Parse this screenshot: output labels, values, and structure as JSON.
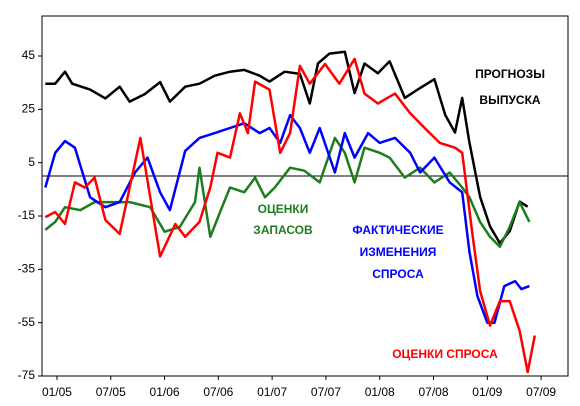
{
  "chart_data": {
    "type": "line",
    "xlim": [
      -1.67,
      57.0
    ],
    "ylim": [
      -75,
      60
    ],
    "yticks": [
      45,
      25,
      5,
      -15,
      -35,
      -55,
      -75
    ],
    "xticks": [
      {
        "value": 0,
        "label": "01/05"
      },
      {
        "value": 6,
        "label": "07/05"
      },
      {
        "value": 12,
        "label": "01/06"
      },
      {
        "value": 18,
        "label": "07/06"
      },
      {
        "value": 24,
        "label": "01/07"
      },
      {
        "value": 30,
        "label": "07/07"
      },
      {
        "value": 36,
        "label": "01/08"
      },
      {
        "value": 42,
        "label": "07/08"
      },
      {
        "value": 48,
        "label": "01/09"
      },
      {
        "value": 54,
        "label": "07/09"
      }
    ],
    "series": [
      {
        "label_lines": [
          "ПРОГНОЗЫ",
          "ВЫПУСКА"
        ],
        "color": "#000000",
        "x": [
          -1.3,
          -0.2,
          0.9,
          1.7,
          3.7,
          5.4,
          7.0,
          8.1,
          9.8,
          11.5,
          12.6,
          14.3,
          15.9,
          17.6,
          19.3,
          20.9,
          22.6,
          23.7,
          25.4,
          27.1,
          28.2,
          29.1,
          30.4,
          32.1,
          33.2,
          34.3,
          35.8,
          37.1,
          38.8,
          40.5,
          42.1,
          43.3,
          44.4,
          45.2,
          46.0,
          47.2,
          48.3,
          49.4,
          50.5,
          51.6,
          52.5
        ],
        "values": [
          34.6,
          34.6,
          39.1,
          34.6,
          32.4,
          29.1,
          33.5,
          27.9,
          30.7,
          35.2,
          27.9,
          33.5,
          34.6,
          37.6,
          39.1,
          39.8,
          37.6,
          35.4,
          39.1,
          38.3,
          27.2,
          42.2,
          45.9,
          46.6,
          31.1,
          42.2,
          38.5,
          43,
          29.3,
          33,
          36.3,
          22.9,
          16.3,
          29.3,
          12.6,
          -7.8,
          -18.9,
          -25.2,
          -20.7,
          -9.6,
          -11.5
        ]
      },
      {
        "label_lines": [
          "ОЦЕНКИ",
          "ЗАПАСОВ"
        ],
        "color": "#1e7d1e",
        "x": [
          -1.3,
          -0.2,
          0.9,
          2.6,
          4.2,
          5.9,
          8.1,
          10.4,
          12.0,
          13.7,
          15.4,
          15.9,
          17.1,
          18.2,
          19.3,
          20.9,
          22.1,
          23.2,
          24.3,
          26.0,
          27.6,
          29.3,
          31.0,
          32.1,
          33.2,
          34.3,
          36.0,
          37.1,
          38.8,
          40.5,
          42.1,
          43.8,
          45.2,
          46.0,
          47.2,
          48.3,
          49.4,
          50.5,
          51.6,
          52.7
        ],
        "values": [
          -20.2,
          -17.2,
          -11.7,
          -12.8,
          -9.8,
          -9.8,
          -9.8,
          -11.7,
          -20.9,
          -19.1,
          -9.8,
          3.1,
          -22.8,
          -13.5,
          -4.3,
          -6.1,
          -0.6,
          -8,
          -4.3,
          3.1,
          2,
          -2.4,
          14.3,
          8.7,
          -2.4,
          10.6,
          8.7,
          6.9,
          -0.6,
          3.1,
          -2.4,
          1.3,
          -4.3,
          -8,
          -17.2,
          -22.8,
          -26.5,
          -19.1,
          -9.8,
          -17.2
        ]
      },
      {
        "label_lines": [
          "ФАКТИЧЕСКИЕ",
          "ИЗМЕНЕНИЯ",
          "СПРОСА"
        ],
        "color": "#0000ff",
        "x": [
          -1.3,
          -0.2,
          0.9,
          2.0,
          3.7,
          5.4,
          7.0,
          8.7,
          10.1,
          11.5,
          12.6,
          14.3,
          15.9,
          17.6,
          19.3,
          20.9,
          22.6,
          23.7,
          24.9,
          26.0,
          27.1,
          28.2,
          29.3,
          31.0,
          32.1,
          33.2,
          34.7,
          36.0,
          37.7,
          39.4,
          40.5,
          42.1,
          43.8,
          45.2,
          46.0,
          46.9,
          48.0,
          48.8,
          49.9,
          51.1,
          51.8,
          52.7
        ],
        "values": [
          -4.3,
          8.7,
          13.1,
          10.6,
          -8,
          -11.7,
          -9.8,
          1.3,
          6.9,
          -6.1,
          -12.8,
          9.4,
          14.3,
          16.1,
          18,
          19.8,
          16.1,
          18,
          12.4,
          22.8,
          18,
          8.7,
          18,
          1.3,
          16.1,
          6.9,
          16.1,
          12.4,
          14.3,
          8.7,
          1.3,
          6.9,
          -2.4,
          -6.1,
          -28.3,
          -45,
          -55,
          -55,
          -41.3,
          -39.4,
          -42.4,
          -41.3
        ]
      },
      {
        "label_lines": [
          "ОЦЕНКИ СПРОСА"
        ],
        "color": "#ff0000",
        "x": [
          -1.3,
          -0.2,
          0.9,
          2.0,
          3.1,
          4.2,
          5.4,
          7.0,
          9.3,
          11.5,
          13.2,
          14.3,
          15.9,
          17.1,
          17.9,
          19.3,
          20.4,
          21.3,
          22.1,
          23.7,
          24.9,
          26.0,
          27.1,
          28.2,
          29.9,
          31.5,
          33.2,
          34.3,
          35.8,
          37.7,
          39.4,
          41.0,
          42.7,
          44.4,
          45.2,
          46.3,
          47.2,
          48.3,
          49.4,
          50.5,
          51.6,
          52.5,
          53.3
        ],
        "values": [
          -15.4,
          -13.5,
          -18,
          -2.4,
          -4.3,
          -0.6,
          -16.5,
          -21.7,
          14.3,
          -30.2,
          -18,
          -22.8,
          -17.2,
          -4.3,
          8.7,
          6.9,
          23.5,
          16.1,
          35.4,
          32.4,
          8.7,
          16.1,
          41.3,
          34.6,
          42,
          34.6,
          43.9,
          30.9,
          27.2,
          30.9,
          23.5,
          18,
          12.4,
          10.6,
          8.7,
          -20.9,
          -43.1,
          -56.1,
          -46.9,
          -46.9,
          -58,
          -73.5,
          -59.8
        ]
      }
    ]
  }
}
